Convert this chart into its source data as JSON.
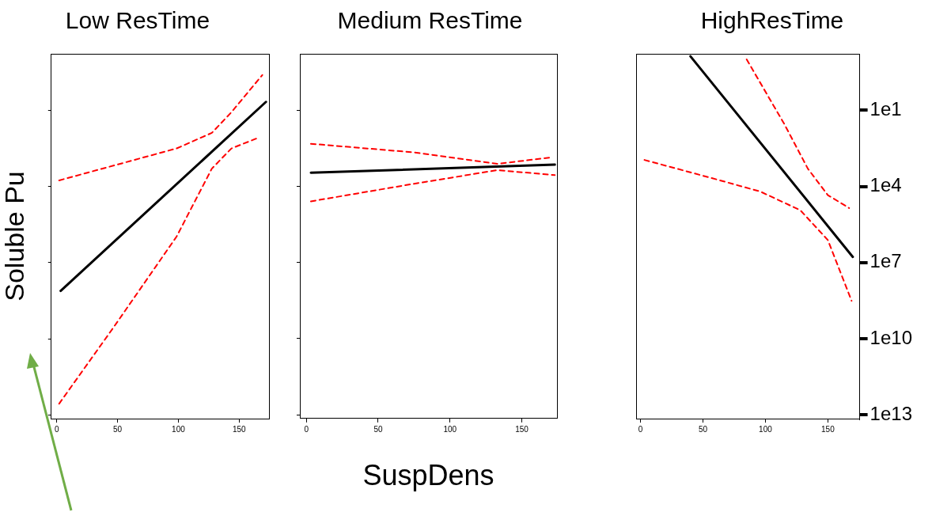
{
  "chart_data": [
    {
      "type": "line",
      "title": "Low ResTime",
      "ylabel": "Soluble Pu",
      "log": true,
      "grid": false,
      "legend": false,
      "marker": "none",
      "tick_labels": "x",
      "xlim": [
        -4.5,
        174.5
      ],
      "xticks": [
        0,
        50,
        100,
        150
      ],
      "ylim": [
        14000000000000.0,
        0.06
      ],
      "yticks": [
        {
          "value": 10,
          "label": null
        },
        {
          "value": 10000,
          "label": null
        },
        {
          "value": 10000000.0,
          "label": null
        },
        {
          "value": 10000000000.0,
          "label": null
        },
        {
          "value": 10000000000000.0,
          "label": null
        }
      ],
      "series": [
        {
          "color": "#000000",
          "line_style": "solid",
          "x": [
            3.2,
            172
          ],
          "values": [
            130000000.0,
            4.7
          ]
        },
        {
          "color": "#ff0000",
          "line_style": "dashed",
          "x": [
            2,
            98.5,
            127.5,
            143.6,
            169
          ],
          "values": [
            5800,
            320,
            78,
            12,
            0.41
          ]
        },
        {
          "color": "#ff0000",
          "line_style": "dashed",
          "x": [
            2,
            47,
            98.5,
            127.5,
            143.6,
            166
          ],
          "values": [
            3600000000000.0,
            3400000000.0,
            950000,
            2000,
            320,
            120
          ]
        }
      ]
    },
    {
      "type": "line",
      "title": "Medium ResTime",
      "xlabel": "SuspDens",
      "log": true,
      "grid": false,
      "legend": false,
      "marker": "none",
      "tick_labels": "x",
      "xlim": [
        -4.5,
        174.5
      ],
      "xticks": [
        0,
        50,
        100,
        150
      ],
      "ylim": [
        14000000000000.0,
        0.06
      ],
      "yticks": [
        {
          "value": 10,
          "label": null
        },
        {
          "value": 10000,
          "label": null
        },
        {
          "value": 10000000.0,
          "label": null
        },
        {
          "value": 10000000000.0,
          "label": null
        },
        {
          "value": 10000000000000.0,
          "label": null
        }
      ],
      "series": [
        {
          "color": "#000000",
          "line_style": "solid",
          "x": [
            3.2,
            173
          ],
          "values": [
            2900,
            1400
          ]
        },
        {
          "color": "#ff0000",
          "line_style": "dashed",
          "x": [
            3.2,
            75,
            133,
            169
          ],
          "values": [
            210,
            460,
            1300,
            740
          ]
        },
        {
          "color": "#ff0000",
          "line_style": "dashed",
          "x": [
            3.2,
            75,
            133,
            173
          ],
          "values": [
            39000,
            7900,
            2300,
            3600
          ]
        }
      ]
    },
    {
      "type": "line",
      "title": "HighResTime",
      "log": true,
      "grid": false,
      "legend": false,
      "marker": "none",
      "xlim": [
        -3.5,
        175.5
      ],
      "xticks": [
        0,
        50,
        100,
        150
      ],
      "ylim": [
        14000000000000.0,
        0.06
      ],
      "yticks": [
        {
          "value": 10,
          "label": "1e1"
        },
        {
          "value": 10000,
          "label": "1e4"
        },
        {
          "value": 10000000.0,
          "label": "1e7"
        },
        {
          "value": 10000000000.0,
          "label": "1e10"
        },
        {
          "value": 10000000000000.0,
          "label": "1e13"
        }
      ],
      "series": [
        {
          "color": "#000000",
          "line_style": "solid",
          "x": [
            40,
            170
          ],
          "values": [
            0.075,
            6000000.0
          ]
        },
        {
          "color": "#ff0000",
          "line_style": "dashed",
          "x": [
            85,
            115,
            134,
            150,
            167
          ],
          "values": [
            0.1,
            34,
            2000,
            22000,
            71000
          ]
        },
        {
          "color": "#ff0000",
          "line_style": "dashed",
          "x": [
            3.2,
            57,
            96,
            128,
            150,
            169
          ],
          "values": [
            910,
            4700,
            16000,
            87000,
            1300000.0,
            320000000.0
          ]
        }
      ]
    }
  ]
}
